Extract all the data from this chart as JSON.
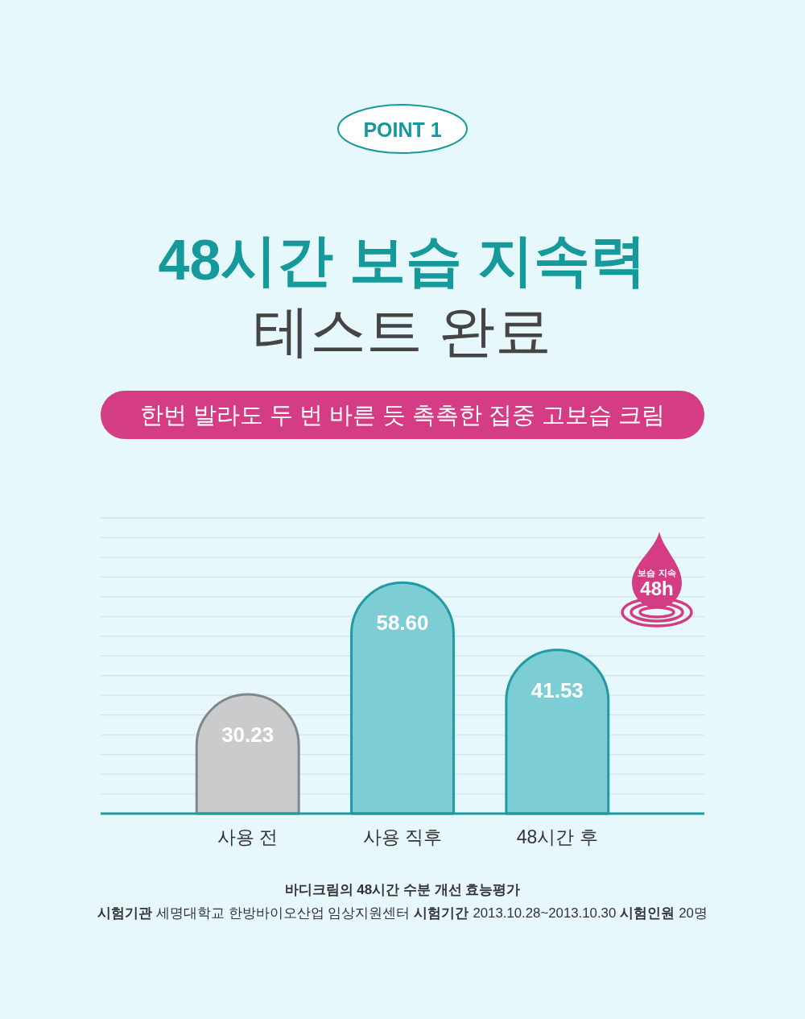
{
  "chart_data": {
    "type": "bar",
    "title": "48시간 보습 지속력\n테스트 완료",
    "subtitle": "한번 발라도 두 번 바른 듯 촉촉한 집중 고보습 크림",
    "categories": [
      "사용 전",
      "사용 직후",
      "48시간 후"
    ],
    "values": [
      30.23,
      58.6,
      41.53
    ],
    "value_labels": [
      "30.23",
      "58.60",
      "41.53"
    ],
    "colors": [
      "#c9cbcc",
      "#7dcdd4",
      "#7dcdd4"
    ],
    "ylim": [
      0,
      75
    ],
    "yticks": [
      {
        "value": 0,
        "label": null
      },
      {
        "value": 5,
        "label": null
      },
      {
        "value": 10,
        "label": null
      },
      {
        "value": 15,
        "label": null
      },
      {
        "value": 20,
        "label": null
      },
      {
        "value": 25,
        "label": null
      },
      {
        "value": 30,
        "label": null
      },
      {
        "value": 35,
        "label": null
      },
      {
        "value": 40,
        "label": null
      },
      {
        "value": 45,
        "label": null
      },
      {
        "value": 50,
        "label": null
      },
      {
        "value": 55,
        "label": null
      },
      {
        "value": 60,
        "label": null
      },
      {
        "value": 65,
        "label": null
      },
      {
        "value": 70,
        "label": null
      },
      {
        "value": 75,
        "label": null
      }
    ],
    "grid": "y",
    "tick_labels": "x",
    "annotations": [
      "POINT 1",
      "보습 지속",
      "48h",
      "바디크림의 48시간 수분 개선 효능평가",
      "시험기관",
      "세명대학교 한방바이오산업 임상지원센터",
      "시험기간",
      "2013.10.28~2013.10.30",
      "시험인원",
      "20명"
    ]
  }
}
